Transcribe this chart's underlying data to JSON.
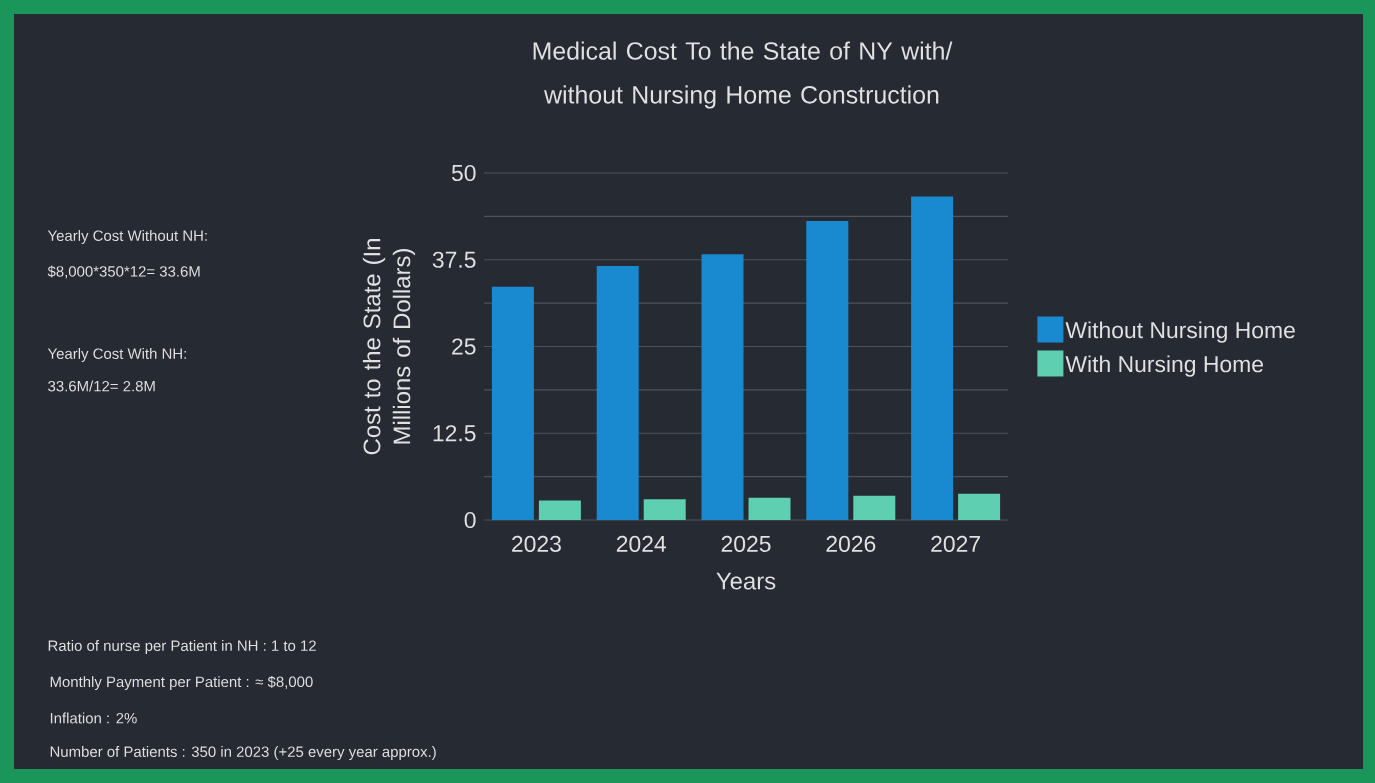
{
  "chart_data": {
    "type": "bar",
    "title": "Medical Cost To the State of NY with/ without  Nursing Home Construction",
    "xlabel": "Years",
    "ylabel": "Cost  to  the State (In Millions of  Dollars)",
    "categories": [
      "2023",
      "2024",
      "2025",
      "2026",
      "2027"
    ],
    "series": [
      {
        "name": "Without Nursing Home",
        "color": "#1a8ad0",
        "values": [
          33.6,
          36.6,
          38.3,
          43.1,
          46.6
        ]
      },
      {
        "name": "With Nursing Home",
        "color": "#5ecfb0",
        "values": [
          2.8,
          3.0,
          3.2,
          3.5,
          3.8
        ]
      }
    ],
    "ylim": [
      0,
      50
    ],
    "yticks": [
      0,
      {
        "value": 6.25,
        "label": null
      },
      12.5,
      {
        "value": 18.75,
        "label": null
      },
      25,
      {
        "value": 31.25,
        "label": null
      },
      37.5,
      {
        "value": 43.75,
        "label": null
      },
      50
    ],
    "grid": "y",
    "legend": "right",
    "annotations": [
      "Yearly Cost Without NH:",
      "$8,000*350*12= 33.6M",
      "Yearly Cost With NH:",
      "33.6M/12= 2.8M",
      "Ratio of nurse per Patient in NH : 1 to 12",
      "Monthly Payment per Patient : ≈ $8,000",
      "Inflation : 2%",
      "Number of Patients : 350 in 2023 (+25 every year approx.)"
    ]
  }
}
